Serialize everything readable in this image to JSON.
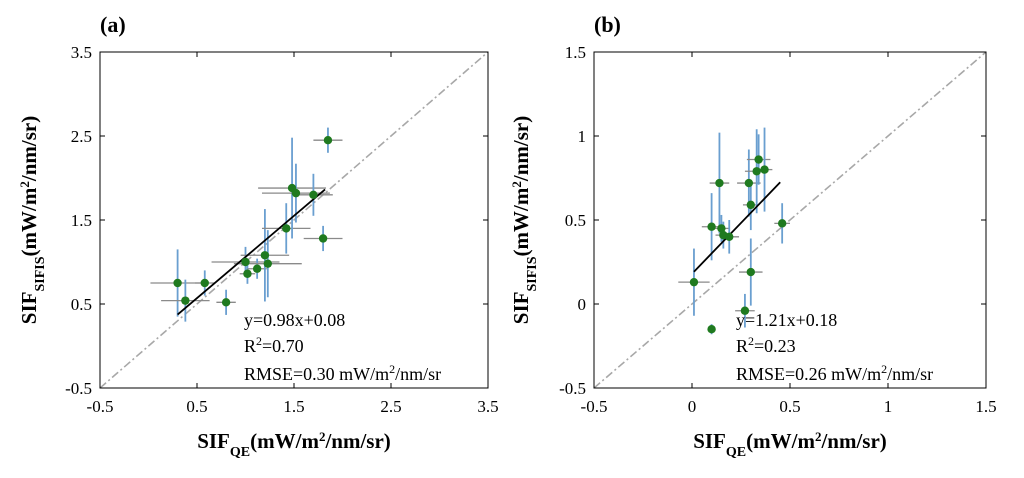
{
  "chart_data": [
    {
      "type": "scatter",
      "panel_label": "(a)",
      "xlabel": {
        "main": "SIF",
        "sub": "QE",
        "pre": "(mW/m",
        "sup": "2",
        "post": "/nm/sr)"
      },
      "ylabel": {
        "main": "SIF",
        "sub": "SIFIS",
        "pre": "(mW/m",
        "sup": "2",
        "post": "/nm/sr)"
      },
      "xlim": [
        -0.5,
        3.5
      ],
      "ylim": [
        -0.5,
        3.5
      ],
      "xticks": [
        "-0.5",
        "0.5",
        "1.5",
        "2.5",
        "3.5"
      ],
      "yticks": [
        "-0.5",
        "0.5",
        "1.5",
        "2.5",
        "3.5"
      ],
      "xtick_values": [
        -0.5,
        0.5,
        1.5,
        2.5,
        3.5
      ],
      "ytick_values": [
        -0.5,
        0.5,
        1.5,
        2.5,
        3.5
      ],
      "grid": false,
      "one_to_one_line": true,
      "fit": {
        "slope": 0.98,
        "intercept": 0.08,
        "x_range": [
          0.3,
          1.82
        ]
      },
      "annotations": {
        "equation": "y=0.98x+0.08",
        "r2_pre": "R",
        "r2_sup": "2",
        "r2_post": "=0.70",
        "rmse_pre": "RMSE=0.30 mW/m",
        "rmse_sup": "2",
        "rmse_post": "/nm/sr"
      },
      "points": [
        {
          "x": 0.3,
          "y": 0.75,
          "xerr": 0.28,
          "yerr": 0.4
        },
        {
          "x": 0.38,
          "y": 0.54,
          "xerr": 0.25,
          "yerr": 0.25
        },
        {
          "x": 0.58,
          "y": 0.75,
          "xerr": 0.1,
          "yerr": 0.15
        },
        {
          "x": 0.8,
          "y": 0.52,
          "xerr": 0.1,
          "yerr": 0.15
        },
        {
          "x": 1.0,
          "y": 1.0,
          "xerr": 0.35,
          "yerr": 0.18
        },
        {
          "x": 1.02,
          "y": 0.86,
          "xerr": 0.08,
          "yerr": 0.12
        },
        {
          "x": 1.12,
          "y": 0.92,
          "xerr": 0.1,
          "yerr": 0.12
        },
        {
          "x": 1.2,
          "y": 1.08,
          "xerr": 0.25,
          "yerr": 0.55
        },
        {
          "x": 1.23,
          "y": 0.98,
          "xerr": 0.35,
          "yerr": 0.4
        },
        {
          "x": 1.42,
          "y": 1.4,
          "xerr": 0.25,
          "yerr": 0.3
        },
        {
          "x": 1.48,
          "y": 1.88,
          "xerr": 0.35,
          "yerr": 0.6
        },
        {
          "x": 1.52,
          "y": 1.82,
          "xerr": 0.35,
          "yerr": 0.35
        },
        {
          "x": 1.7,
          "y": 1.8,
          "xerr": 0.2,
          "yerr": 0.25
        },
        {
          "x": 1.8,
          "y": 1.28,
          "xerr": 0.2,
          "yerr": 0.15
        },
        {
          "x": 1.85,
          "y": 2.45,
          "xerr": 0.15,
          "yerr": 0.15
        }
      ]
    },
    {
      "type": "scatter",
      "panel_label": "(b)",
      "xlabel": {
        "main": "SIF",
        "sub": "QE",
        "pre": "(mW/m",
        "sup": "2",
        "post": "/nm/sr)"
      },
      "ylabel": {
        "main": "SIF",
        "sub": "SIFIS",
        "pre": "(mW/m",
        "sup": "2",
        "post": "/nm/sr)"
      },
      "xlim": [
        -0.5,
        1.5
      ],
      "ylim": [
        -0.5,
        1.5
      ],
      "xticks": [
        "-0.5",
        "0",
        "0.5",
        "1",
        "1.5"
      ],
      "yticks": [
        "-0.5",
        "0",
        "0.5",
        "1",
        "1.5"
      ],
      "xtick_values": [
        -0.5,
        0,
        0.5,
        1,
        1.5
      ],
      "ytick_values": [
        -0.5,
        0,
        0.5,
        1,
        1.5
      ],
      "grid": false,
      "one_to_one_line": true,
      "fit": {
        "slope": 1.21,
        "intercept": 0.18,
        "x_range": [
          0.01,
          0.45
        ]
      },
      "annotations": {
        "equation": "y=1.21x+0.18",
        "r2_pre": "R",
        "r2_sup": "2",
        "r2_post": "=0.23",
        "rmse_pre": "RMSE=0.26 mW/m",
        "rmse_sup": "2",
        "rmse_post": "/nm/sr"
      },
      "points": [
        {
          "x": 0.01,
          "y": 0.13,
          "xerr": 0.08,
          "yerr": 0.2
        },
        {
          "x": 0.1,
          "y": -0.15,
          "xerr": 0.02,
          "yerr": 0.03
        },
        {
          "x": 0.1,
          "y": 0.46,
          "xerr": 0.05,
          "yerr": 0.2
        },
        {
          "x": 0.14,
          "y": 0.72,
          "xerr": 0.05,
          "yerr": 0.3
        },
        {
          "x": 0.15,
          "y": 0.45,
          "xerr": 0.04,
          "yerr": 0.08
        },
        {
          "x": 0.16,
          "y": 0.41,
          "xerr": 0.04,
          "yerr": 0.08
        },
        {
          "x": 0.19,
          "y": 0.4,
          "xerr": 0.05,
          "yerr": 0.1
        },
        {
          "x": 0.27,
          "y": -0.04,
          "xerr": 0.05,
          "yerr": 0.1
        },
        {
          "x": 0.29,
          "y": 0.72,
          "xerr": 0.06,
          "yerr": 0.2
        },
        {
          "x": 0.3,
          "y": 0.59,
          "xerr": 0.04,
          "yerr": 0.15
        },
        {
          "x": 0.3,
          "y": 0.19,
          "xerr": 0.06,
          "yerr": 0.2
        },
        {
          "x": 0.33,
          "y": 0.79,
          "xerr": 0.06,
          "yerr": 0.25
        },
        {
          "x": 0.34,
          "y": 0.86,
          "xerr": 0.06,
          "yerr": 0.15
        },
        {
          "x": 0.37,
          "y": 0.8,
          "xerr": 0.04,
          "yerr": 0.25
        },
        {
          "x": 0.46,
          "y": 0.48,
          "xerr": 0.04,
          "yerr": 0.12
        }
      ]
    }
  ],
  "colors": {
    "marker": "#1f7a1f",
    "y_errorbar": "#6a9fd0",
    "x_errorbar": "#8a8a8a",
    "one_to_one": "#a8a8a8",
    "fit_line": "#000000"
  }
}
